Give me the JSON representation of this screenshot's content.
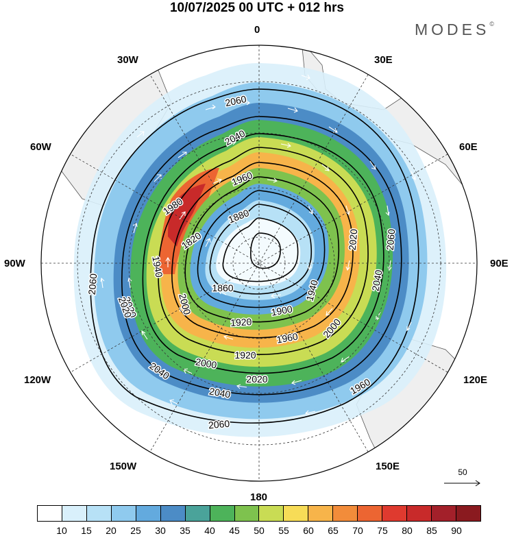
{
  "title": "10/07/2025  00 UTC  + 012 hrs",
  "logo": "MODES",
  "logo_mark": "©",
  "longitude_labels": {
    "lon_0": "0",
    "lon_30e": "30E",
    "lon_60e": "60E",
    "lon_90e": "90E",
    "lon_120e": "120E",
    "lon_150e": "150E",
    "lon_180": "180",
    "lon_150w": "150W",
    "lon_120w": "120W",
    "lon_90w": "90W",
    "lon_60w": "60W",
    "lon_30w": "30W"
  },
  "contour_labels": [
    "2060",
    "2040",
    "1960",
    "1880",
    "1860",
    "1820",
    "1980",
    "1900",
    "1920",
    "1960",
    "1920",
    "2000",
    "2020",
    "2040",
    "2060",
    "2020",
    "2000",
    "1940",
    "2020",
    "2040",
    "2060",
    "2060",
    "2020",
    "1940",
    "2040",
    "2000",
    "1960"
  ],
  "vector_scale": {
    "label": "50"
  },
  "colorbar": {
    "ticks": [
      "10",
      "15",
      "20",
      "25",
      "30",
      "35",
      "40",
      "45",
      "50",
      "55",
      "60",
      "65",
      "70",
      "75",
      "80",
      "85",
      "90"
    ],
    "colors": [
      "#ffffff",
      "#d9f0fb",
      "#b7e1f6",
      "#8fcaee",
      "#63aade",
      "#4c8cc6",
      "#4aa39a",
      "#4db35a",
      "#7ec24e",
      "#c9dc54",
      "#f7dc57",
      "#f7b44a",
      "#f28c3a",
      "#ec6532",
      "#df3a2f",
      "#c82a2a",
      "#a3202a",
      "#8a1a1f"
    ]
  },
  "colors": {
    "land": "#efefef",
    "ocean": "#ffffff",
    "contour": "#000000",
    "vector": "#ffffff"
  }
}
